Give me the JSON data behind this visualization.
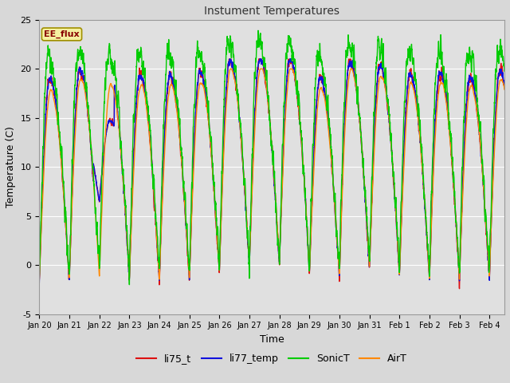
{
  "title": "Instument Temperatures",
  "xlabel": "Time",
  "ylabel": "Temperature (C)",
  "ylim": [
    -5,
    25
  ],
  "xlim_start": 0,
  "xlim_end": 15.5,
  "fig_bg": "#d8d8d8",
  "plot_bg": "#e0e0e0",
  "grid_color": "#ffffff",
  "annotation_text": "EE_flux",
  "annotation_bg": "#f5f0a0",
  "annotation_border": "#a09000",
  "annotation_text_color": "#880000",
  "li75_color": "#dd1111",
  "li77_color": "#1111dd",
  "sonic_color": "#00cc00",
  "airt_color": "#ff8800",
  "line_width": 1.0,
  "xtick_labels": [
    "Jan 20",
    "Jan 21",
    "Jan 22",
    "Jan 23",
    "Jan 24",
    "Jan 25",
    "Jan 26",
    "Jan 27",
    "Jan 28",
    "Jan 29",
    "Jan 30",
    "Jan 31",
    "Feb 1",
    "Feb 2",
    "Feb 3",
    "Feb 4"
  ],
  "ytick_values": [
    -5,
    0,
    5,
    10,
    15,
    20,
    25
  ],
  "legend_entries": [
    "li75_t",
    "li77_temp",
    "SonicT",
    "AirT"
  ],
  "legend_colors": [
    "#dd1111",
    "#1111dd",
    "#00cc00",
    "#ff8800"
  ]
}
